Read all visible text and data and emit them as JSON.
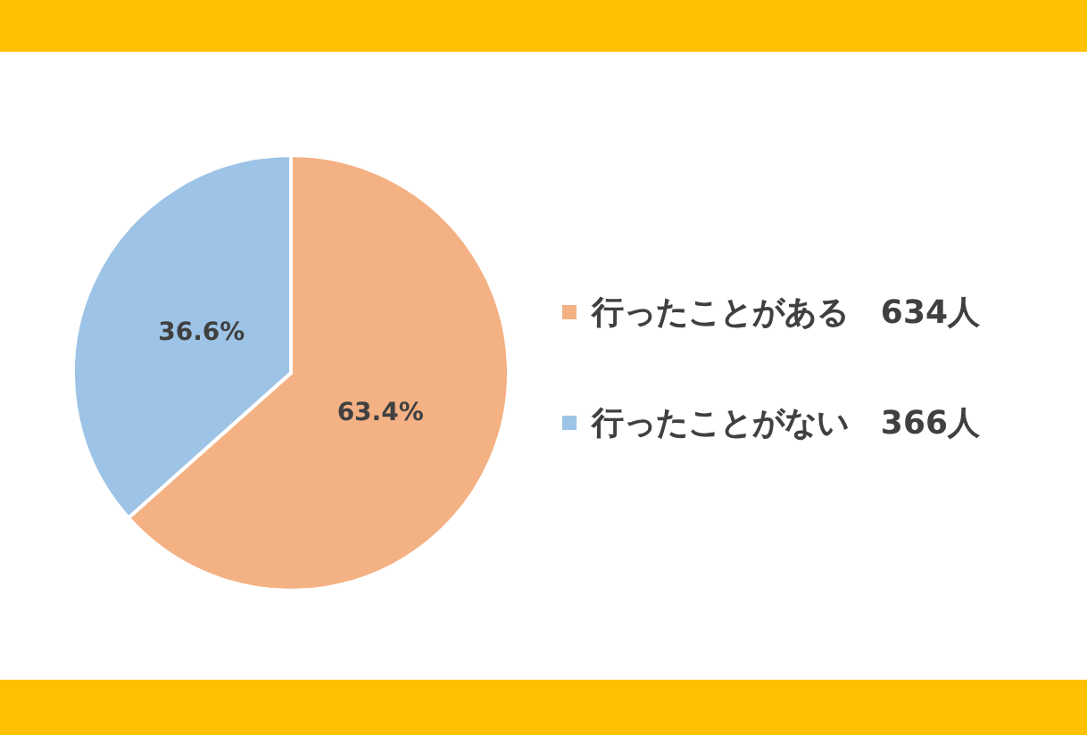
{
  "chart_data": {
    "type": "pie",
    "categories": [
      "行ったことがある　634人",
      "行ったことがない　366人"
    ],
    "values": [
      63.4,
      36.6
    ],
    "colors": [
      "#f4b183",
      "#9dc3e6"
    ],
    "value_labels": [
      "63.4%",
      "36.6%"
    ],
    "legend": "right"
  }
}
